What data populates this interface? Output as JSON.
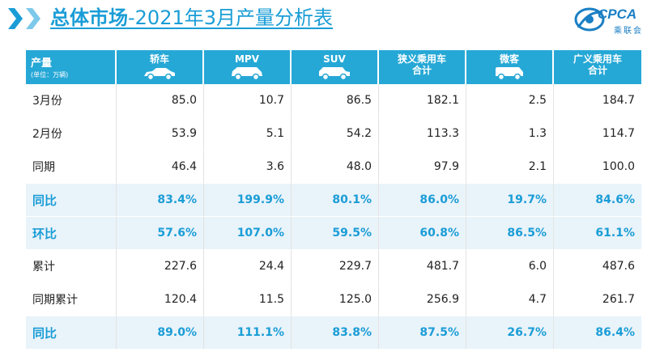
{
  "header": {
    "title_bold": "总体市场",
    "title_rest": "-2021年3月产量分析表"
  },
  "logo": {
    "text": "CPCA",
    "sub": "乘联会"
  },
  "table": {
    "row_header_main": "产量",
    "row_header_sub": "(单位：万辆)",
    "columns": [
      {
        "label": "轿车",
        "icon": "sedan-icon"
      },
      {
        "label": "MPV",
        "icon": "mpv-icon"
      },
      {
        "label": "SUV",
        "icon": "suv-icon"
      },
      {
        "label": "狭义乘用车\n合计",
        "icon": ""
      },
      {
        "label": "微客",
        "icon": "minivan-icon"
      },
      {
        "label": "广义乘用车\n合计",
        "icon": ""
      }
    ],
    "rows": [
      {
        "label": "3月份",
        "type": "norm",
        "values": [
          "85.0",
          "10.7",
          "86.5",
          "182.1",
          "2.5",
          "184.7"
        ]
      },
      {
        "label": "2月份",
        "type": "norm",
        "values": [
          "53.9",
          "5.1",
          "54.2",
          "113.3",
          "1.3",
          "114.7"
        ]
      },
      {
        "label": "同期",
        "type": "norm",
        "values": [
          "46.4",
          "3.6",
          "48.0",
          "97.9",
          "2.1",
          "100.0"
        ]
      },
      {
        "label": "同比",
        "type": "pct",
        "values": [
          "83.4%",
          "199.9%",
          "80.1%",
          "86.0%",
          "19.7%",
          "84.6%"
        ]
      },
      {
        "label": "环比",
        "type": "pct",
        "values": [
          "57.6%",
          "107.0%",
          "59.5%",
          "60.8%",
          "86.5%",
          "61.1%"
        ]
      },
      {
        "label": "累计",
        "type": "norm",
        "values": [
          "227.6",
          "24.4",
          "229.7",
          "481.7",
          "6.0",
          "487.6"
        ]
      },
      {
        "label": "同期累计",
        "type": "norm",
        "values": [
          "120.4",
          "11.5",
          "125.0",
          "256.9",
          "4.7",
          "261.7"
        ]
      },
      {
        "label": "同比",
        "type": "pct",
        "values": [
          "89.0%",
          "111.1%",
          "83.8%",
          "87.5%",
          "26.7%",
          "86.4%"
        ]
      }
    ]
  },
  "colors": {
    "accent": "#1a9dd6",
    "header_bg": "#26a8d6",
    "pct_row_bg": "#e9f3fa"
  }
}
